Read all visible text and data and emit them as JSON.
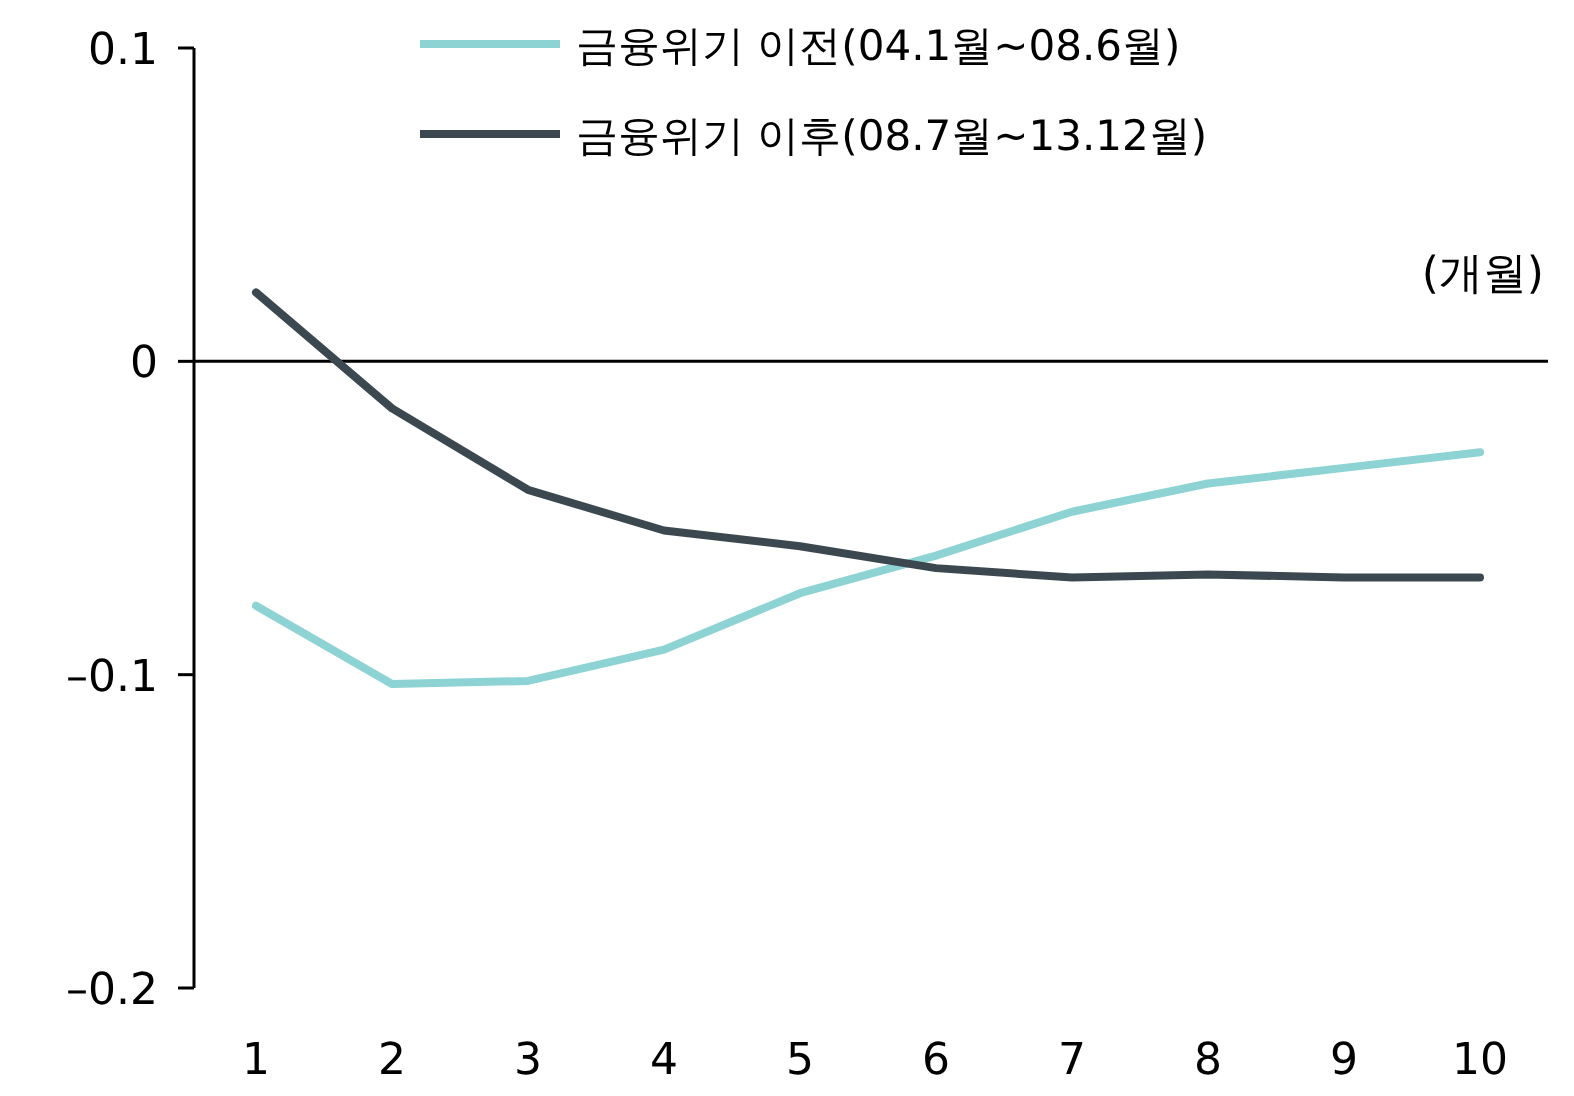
{
  "chart_data": {
    "type": "line",
    "xlabel": "(개월)",
    "categories": [
      "1",
      "2",
      "3",
      "4",
      "5",
      "6",
      "7",
      "8",
      "9",
      "10"
    ],
    "series": [
      {
        "name": "금융위기 이전(04.1월~08.6월)",
        "color": "#8dd3d3",
        "values": [
          -0.078,
          -0.103,
          -0.102,
          -0.092,
          -0.074,
          -0.062,
          -0.048,
          -0.039,
          -0.034,
          -0.029
        ]
      },
      {
        "name": "금융위기 이후(08.7월~13.12월)",
        "color": "#3c4850",
        "values": [
          0.022,
          -0.015,
          -0.041,
          -0.054,
          -0.059,
          -0.066,
          -0.069,
          -0.068,
          -0.069,
          -0.069
        ]
      }
    ],
    "ylim": [
      -0.2,
      0.1
    ],
    "yticks": [
      0.1,
      0,
      {
        "value": -0.1,
        "label": "–0.1"
      },
      {
        "value": -0.2,
        "label": "–0.2"
      }
    ],
    "legend": "top"
  }
}
